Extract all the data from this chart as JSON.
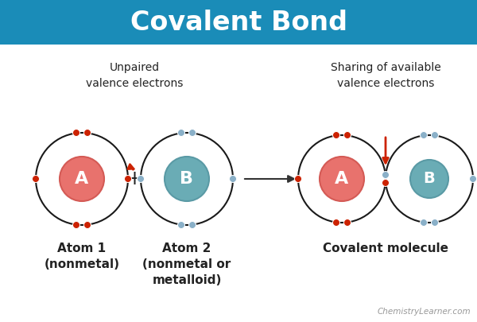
{
  "title": "Covalent Bond",
  "title_bg": "#1a8cb8",
  "title_color": "white",
  "bg_color": "white",
  "atom_A_color": "#e8726d",
  "atom_B_color": "#6aacb5",
  "atom_A_border": "#d45a55",
  "atom_B_border": "#5a9aa5",
  "electron_red_color": "#cc2200",
  "electron_blue_color": "#8ab0c8",
  "orbit_color": "#1a1a1a",
  "arrow_color": "#cc2200",
  "text_color": "#222222",
  "label1_text": "Unpaired\nvalence electrons",
  "label2_text": "Sharing of available\nvalence electrons",
  "atom1_label": "Atom 1\n(nonmetal)",
  "atom2_label": "Atom 2\n(nonmetal or\nmetalloid)",
  "molecule_label": "Covalent molecule",
  "watermark": "ChemistryLearner.com",
  "atom_A_letter": "A",
  "atom_B_letter": "B",
  "fig_width": 6.0,
  "fig_height": 4.05,
  "dpi": 100
}
